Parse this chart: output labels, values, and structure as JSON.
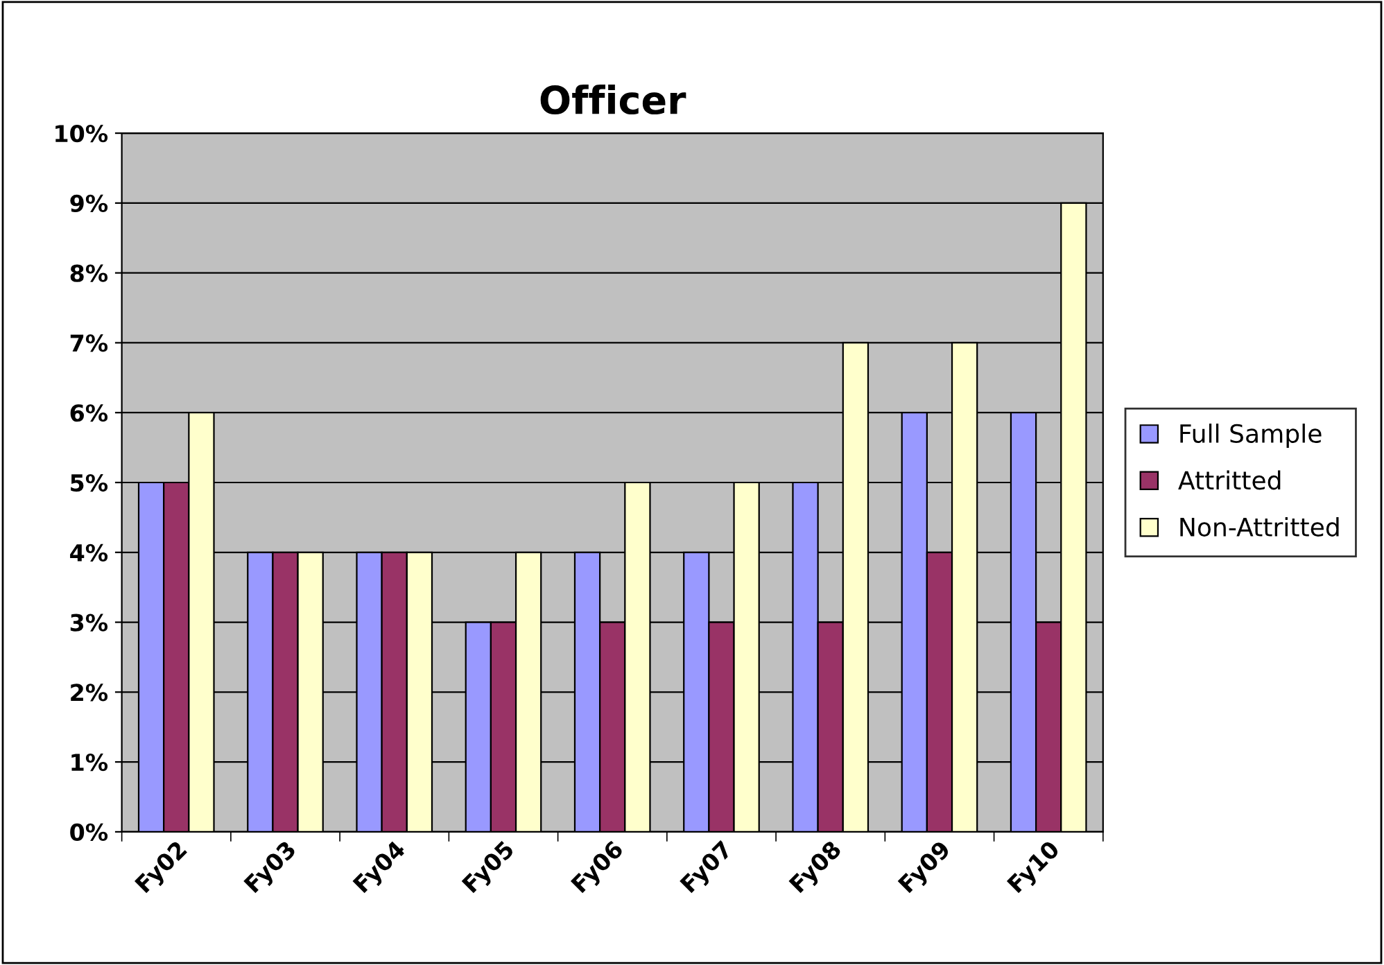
{
  "chart_data": {
    "type": "bar",
    "title": "Officer",
    "categories": [
      "Fy02",
      "Fy03",
      "Fy04",
      "Fy05",
      "Fy06",
      "Fy07",
      "Fy08",
      "Fy09",
      "Fy10"
    ],
    "series": [
      {
        "name": "Full Sample",
        "color": "#9999ff",
        "values": [
          5,
          4,
          4,
          3,
          4,
          4,
          5,
          6,
          6
        ]
      },
      {
        "name": "Attritted",
        "color": "#993366",
        "values": [
          5,
          4,
          4,
          3,
          3,
          3,
          3,
          4,
          3
        ]
      },
      {
        "name": "Non-Attritted",
        "color": "#ffffcc",
        "values": [
          6,
          4,
          4,
          4,
          5,
          5,
          7,
          7,
          9
        ]
      }
    ],
    "ylim": [
      0,
      10
    ],
    "yticks": [
      {
        "value": 0,
        "label": "0%"
      },
      {
        "value": 1,
        "label": "1%"
      },
      {
        "value": 2,
        "label": "2%"
      },
      {
        "value": 3,
        "label": "3%"
      },
      {
        "value": 4,
        "label": "4%"
      },
      {
        "value": 5,
        "label": "5%"
      },
      {
        "value": 6,
        "label": "6%"
      },
      {
        "value": 7,
        "label": "7%"
      },
      {
        "value": 8,
        "label": "8%"
      },
      {
        "value": 9,
        "label": "9%"
      },
      {
        "value": 10,
        "label": "10%"
      }
    ],
    "grid": "y",
    "legend": "right"
  }
}
